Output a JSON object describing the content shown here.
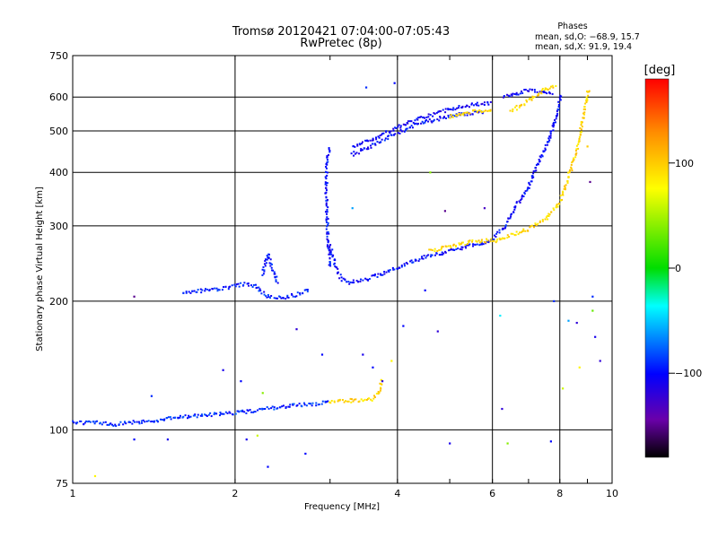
{
  "chart_data": {
    "type": "scatter",
    "title": "Tromsø 20120421 07:04:00-07:05:43",
    "subtitle": "RwPretec (8p)",
    "xlabel": "Frequency [MHz]",
    "ylabel": "Stationary phase Virtual Height [km]",
    "x_scale": "log",
    "y_scale": "log",
    "xlim": [
      1,
      10
    ],
    "ylim": [
      75,
      750
    ],
    "x_ticks": [
      1,
      2,
      4,
      6,
      8,
      10
    ],
    "x_tick_labels": [
      "1",
      "2",
      "4",
      "6",
      "8",
      "10"
    ],
    "y_ticks": [
      75,
      100,
      200,
      300,
      400,
      500,
      600,
      750
    ],
    "y_tick_labels": [
      "75",
      "100",
      "200",
      "300",
      "400",
      "500",
      "600",
      "750"
    ],
    "grid": true,
    "phases": {
      "title": "Phases",
      "line_o": "mean, sd,O: −68.9, 15.7",
      "line_x": "mean, sd,X:  91.9, 19.4"
    },
    "colorbar": {
      "label": "[deg]",
      "range": [
        -180,
        180
      ],
      "ticks": [
        100,
        0,
        -100
      ],
      "tick_labels": [
        "100",
        "0",
        "−100"
      ],
      "colors": [
        "#ff0000",
        "#ff8c00",
        "#ffff00",
        "#00dd00",
        "#00ffff",
        "#0000ff",
        "#6a00aa",
        "#000000"
      ]
    },
    "traces": [
      {
        "phase": -90,
        "points": [
          [
            1.0,
            104
          ],
          [
            1.1,
            104
          ],
          [
            1.2,
            103
          ],
          [
            1.3,
            104
          ],
          [
            1.4,
            105
          ],
          [
            1.5,
            106
          ],
          [
            1.6,
            107
          ],
          [
            1.7,
            108
          ],
          [
            1.8,
            108.5
          ],
          [
            1.9,
            109
          ],
          [
            2.0,
            109.5
          ],
          [
            2.2,
            111
          ],
          [
            2.4,
            113
          ],
          [
            2.6,
            114
          ],
          [
            2.8,
            115
          ],
          [
            3.0,
            116
          ]
        ]
      },
      {
        "phase": 95,
        "points": [
          [
            3.0,
            116
          ],
          [
            3.2,
            117
          ],
          [
            3.4,
            117
          ],
          [
            3.6,
            118
          ],
          [
            3.7,
            122
          ],
          [
            3.75,
            132
          ]
        ]
      },
      {
        "phase": -95,
        "points": [
          [
            1.6,
            210
          ],
          [
            1.8,
            212
          ],
          [
            2.0,
            217
          ],
          [
            2.1,
            220
          ],
          [
            2.2,
            215
          ],
          [
            2.3,
            205
          ],
          [
            2.45,
            203
          ],
          [
            2.6,
            207
          ],
          [
            2.75,
            213
          ]
        ]
      },
      {
        "phase": -95,
        "points": [
          [
            2.25,
            230
          ],
          [
            2.3,
            258
          ],
          [
            2.35,
            236
          ],
          [
            2.4,
            220
          ]
        ]
      },
      {
        "phase": -100,
        "points": [
          [
            3.0,
            240
          ],
          [
            2.97,
            290
          ],
          [
            2.95,
            360
          ],
          [
            2.96,
            430
          ],
          [
            3.0,
            460
          ]
        ]
      },
      {
        "phase": -100,
        "points": [
          [
            3.0,
            270
          ],
          [
            3.08,
            240
          ],
          [
            3.15,
            225
          ],
          [
            3.25,
            221
          ],
          [
            3.5,
            225
          ],
          [
            3.8,
            233
          ],
          [
            4.0,
            240
          ],
          [
            4.5,
            254
          ],
          [
            5.0,
            262
          ],
          [
            5.5,
            270
          ],
          [
            6.0,
            277
          ]
        ]
      },
      {
        "phase": -100,
        "points": [
          [
            3.3,
            440
          ],
          [
            3.5,
            455
          ],
          [
            3.7,
            470
          ],
          [
            4.0,
            495
          ],
          [
            4.3,
            515
          ],
          [
            4.7,
            532
          ],
          [
            5.2,
            545
          ],
          [
            5.8,
            555
          ]
        ]
      },
      {
        "phase": -105,
        "points": [
          [
            3.3,
            460
          ],
          [
            3.6,
            478
          ],
          [
            4.0,
            510
          ],
          [
            4.5,
            540
          ],
          [
            5.0,
            562
          ],
          [
            5.5,
            575
          ],
          [
            6.0,
            582
          ]
        ]
      },
      {
        "phase": -100,
        "points": [
          [
            6.0,
            280
          ],
          [
            6.3,
            295
          ],
          [
            6.6,
            330
          ],
          [
            7.0,
            370
          ],
          [
            7.3,
            420
          ],
          [
            7.6,
            470
          ],
          [
            7.8,
            520
          ],
          [
            7.95,
            570
          ],
          [
            8.05,
            610
          ]
        ]
      },
      {
        "phase": -105,
        "points": [
          [
            6.3,
            600
          ],
          [
            6.6,
            610
          ],
          [
            7.0,
            622
          ],
          [
            7.4,
            615
          ],
          [
            7.8,
            612
          ]
        ]
      },
      {
        "phase": 95,
        "points": [
          [
            4.6,
            262
          ],
          [
            5.0,
            268
          ],
          [
            5.5,
            275
          ],
          [
            6.0,
            278
          ]
        ]
      },
      {
        "phase": 95,
        "points": [
          [
            6.0,
            275
          ],
          [
            6.5,
            285
          ],
          [
            7.0,
            295
          ],
          [
            7.5,
            310
          ],
          [
            8.0,
            340
          ],
          [
            8.3,
            390
          ],
          [
            8.6,
            450
          ],
          [
            8.8,
            520
          ],
          [
            8.95,
            580
          ],
          [
            9.05,
            630
          ]
        ]
      },
      {
        "phase": 95,
        "points": [
          [
            6.5,
            555
          ],
          [
            7.0,
            590
          ],
          [
            7.5,
            625
          ],
          [
            7.9,
            640
          ]
        ]
      },
      {
        "phase": 95,
        "points": [
          [
            5.0,
            540
          ],
          [
            5.5,
            555
          ],
          [
            6.0,
            560
          ]
        ]
      }
    ],
    "scatter": [
      [
        3.95,
        647,
        -100
      ],
      [
        3.5,
        632,
        -90
      ],
      [
        3.3,
        330,
        -60
      ],
      [
        2.6,
        172,
        -120
      ],
      [
        2.9,
        150,
        -100
      ],
      [
        3.45,
        150,
        -110
      ],
      [
        3.6,
        140,
        -100
      ],
      [
        3.75,
        130,
        -120
      ],
      [
        3.9,
        145,
        80
      ],
      [
        4.5,
        212,
        -100
      ],
      [
        4.6,
        400,
        40
      ],
      [
        4.9,
        325,
        -150
      ],
      [
        4.75,
        170,
        -120
      ],
      [
        4.1,
        175,
        -100
      ],
      [
        5.0,
        93,
        -110
      ],
      [
        5.8,
        330,
        -130
      ],
      [
        6.2,
        185,
        -40
      ],
      [
        6.25,
        112,
        -120
      ],
      [
        6.4,
        93,
        40
      ],
      [
        7.8,
        200,
        -90
      ],
      [
        8.1,
        125,
        60
      ],
      [
        8.3,
        180,
        -60
      ],
      [
        8.6,
        178,
        -120
      ],
      [
        8.7,
        140,
        80
      ],
      [
        9.2,
        190,
        30
      ],
      [
        9.3,
        165,
        -110
      ],
      [
        9.5,
        145,
        -120
      ],
      [
        9.1,
        380,
        -150
      ],
      [
        9.0,
        460,
        100
      ],
      [
        1.9,
        138,
        -110
      ],
      [
        2.05,
        130,
        -100
      ],
      [
        2.1,
        95,
        -110
      ],
      [
        2.2,
        97,
        60
      ],
      [
        1.4,
        120,
        -90
      ],
      [
        1.3,
        95,
        -100
      ],
      [
        1.5,
        95,
        -110
      ],
      [
        1.1,
        78,
        80
      ],
      [
        1.3,
        205,
        -150
      ],
      [
        2.25,
        122,
        40
      ],
      [
        2.3,
        82,
        -100
      ],
      [
        2.7,
        88,
        -100
      ],
      [
        9.2,
        205,
        -90
      ],
      [
        7.7,
        94,
        -100
      ]
    ]
  }
}
